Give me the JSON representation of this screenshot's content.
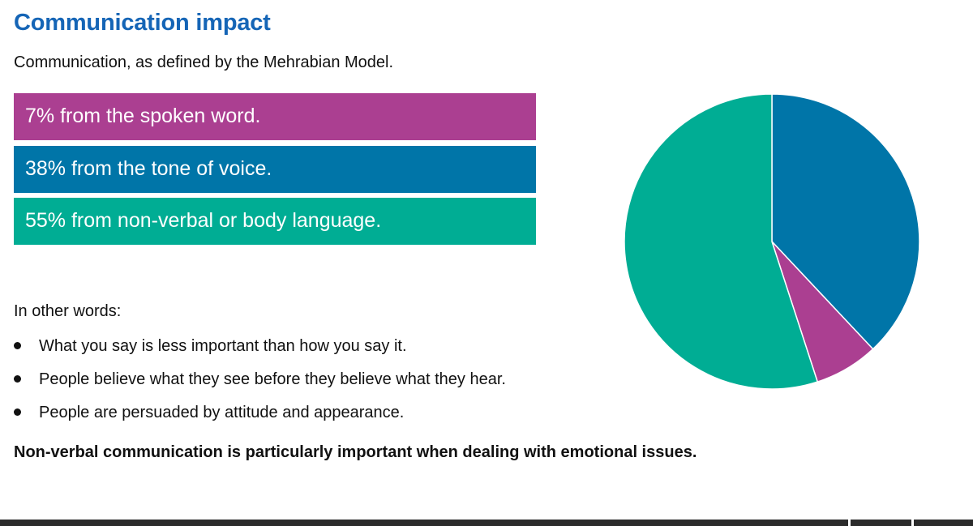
{
  "title": "Communication impact",
  "subtitle": "Communication, as defined by the Mehrabian Model.",
  "stats": [
    {
      "label": "7% from the spoken word.",
      "color": "#ab3f91"
    },
    {
      "label": "38% from the tone of voice.",
      "color": "#0075a8"
    },
    {
      "label": "55% from non-verbal or body language.",
      "color": "#00ad94"
    }
  ],
  "intro": "In other words:",
  "bullets": [
    "What you say is less important than how you say it.",
    "People believe what they see before they believe what they hear.",
    "People are persuaded by attitude and appearance."
  ],
  "conclusion": "Non-verbal communication is particularly important when dealing with emotional issues.",
  "chart_data": {
    "type": "pie",
    "start": "top, clockwise",
    "slices": [
      {
        "value": 38,
        "color": "#0075a8"
      },
      {
        "value": 7,
        "color": "#ab3f91"
      },
      {
        "value": 55,
        "color": "#00ad94"
      }
    ]
  }
}
